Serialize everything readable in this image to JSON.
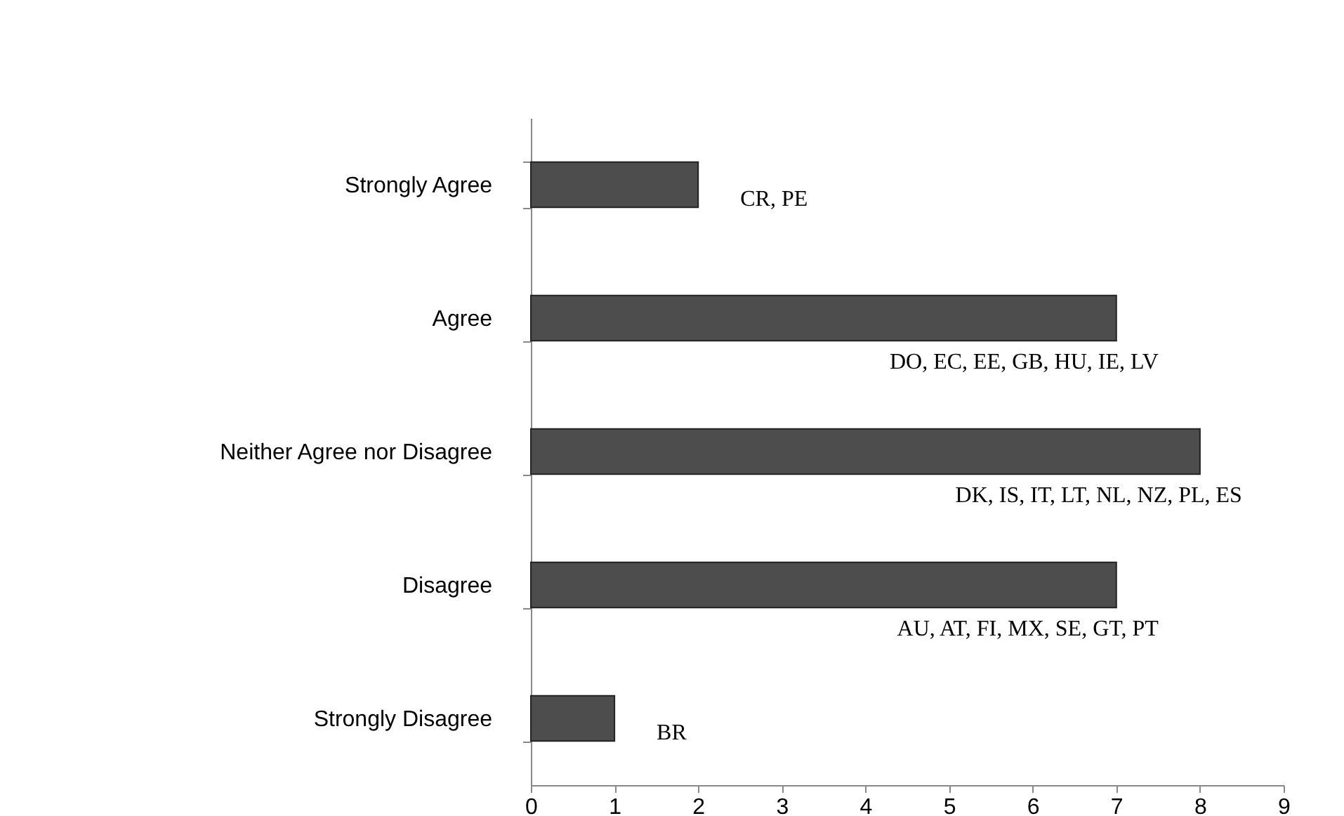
{
  "chart_data": {
    "type": "bar",
    "orientation": "horizontal",
    "categories": [
      "Strongly Agree",
      "Agree",
      "Neither Agree nor Disagree",
      "Disagree",
      "Strongly Disagree"
    ],
    "values": [
      2,
      7,
      8,
      7,
      1
    ],
    "color": "#4d4d4d",
    "xlim": [
      0,
      9
    ],
    "xticks": [
      0,
      1,
      2,
      3,
      4,
      5,
      6,
      7,
      8,
      9
    ],
    "annotations": [
      "CR, PE",
      "DO, EC, EE, GB, HU, IE, LV",
      "DK, IS, IT, LT, NL, NZ, PL, ES",
      "AU, AT, FI, MX, SE, GT, PT",
      "BR"
    ]
  }
}
